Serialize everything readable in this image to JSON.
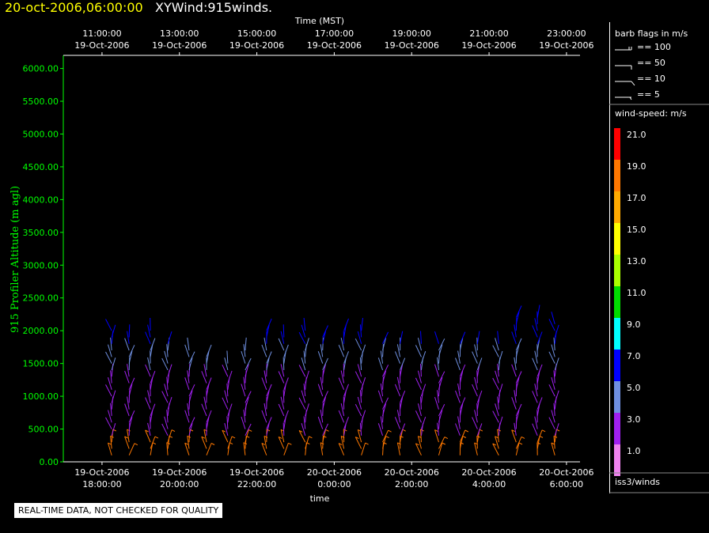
{
  "header": {
    "date": "20-oct-2006,06:00:00",
    "title": "XYWind:915winds."
  },
  "disclaimer": "REAL-TIME DATA, NOT CHECKED FOR QUALITY",
  "legend": {
    "barb_title": "barb flags in m/s",
    "barbs": [
      "== 100",
      "== 50",
      "== 10",
      "== 5"
    ],
    "speed_title": "wind-speed: m/s",
    "colors": [
      {
        "label": "21.0",
        "color": "#ff0000"
      },
      {
        "label": "19.0",
        "color": "#ff7800"
      },
      {
        "label": "17.0",
        "color": "#ffaa00"
      },
      {
        "label": "15.0",
        "color": "#ffff00"
      },
      {
        "label": "13.0",
        "color": "#aaff00"
      },
      {
        "label": "11.0",
        "color": "#00dd00"
      },
      {
        "label": "9.0",
        "color": "#00ffff"
      },
      {
        "label": "7.0",
        "color": "#0000ff"
      },
      {
        "label": "5.0",
        "color": "#6f8fe0"
      },
      {
        "label": "3.0",
        "color": "#a020f0"
      },
      {
        "label": "1.0",
        "color": "#ee82ee"
      }
    ],
    "source": "iss3/winds"
  },
  "chart_data": {
    "type": "scatter",
    "ylabel": "915 Profiler Altitude (m agl)",
    "xlabel": "time",
    "top_axis_title": "Time (MST)",
    "ylim": [
      0,
      6200
    ],
    "yticks": [
      "0.00",
      "500.00",
      "1000.00",
      "1500.00",
      "2000.00",
      "2500.00",
      "3000.00",
      "3500.00",
      "4000.00",
      "4500.00",
      "5000.00",
      "5500.00",
      "6000.00"
    ],
    "bottom_ticks": [
      {
        "date": "19-Oct-2006",
        "time": "18:00:00"
      },
      {
        "date": "19-Oct-2006",
        "time": "20:00:00"
      },
      {
        "date": "19-Oct-2006",
        "time": "22:00:00"
      },
      {
        "date": "20-Oct-2006",
        "time": "0:00:00"
      },
      {
        "date": "20-Oct-2006",
        "time": "2:00:00"
      },
      {
        "date": "20-Oct-2006",
        "time": "4:00:00"
      },
      {
        "date": "20-Oct-2006",
        "time": "6:00:00"
      }
    ],
    "top_ticks": [
      {
        "time": "11:00:00",
        "date": "19-Oct-2006"
      },
      {
        "time": "13:00:00",
        "date": "19-Oct-2006"
      },
      {
        "time": "15:00:00",
        "date": "19-Oct-2006"
      },
      {
        "time": "17:00:00",
        "date": "19-Oct-2006"
      },
      {
        "time": "19:00:00",
        "date": "19-Oct-2006"
      },
      {
        "time": "21:00:00",
        "date": "19-Oct-2006"
      },
      {
        "time": "23:00:00",
        "date": "19-Oct-2006"
      }
    ],
    "profile_times_hours": [
      0.25,
      0.7,
      1.25,
      1.7,
      2.25,
      2.7,
      3.25,
      3.7,
      4.25,
      4.7,
      5.25,
      5.7,
      6.25,
      6.7,
      7.25,
      7.7,
      8.25,
      8.7,
      9.25,
      9.7,
      10.25,
      10.7,
      11.25,
      11.7
    ],
    "top_heights_m": [
      2000,
      1950,
      2000,
      1850,
      1750,
      1600,
      1500,
      1700,
      2000,
      1950,
      2000,
      1950,
      2000,
      2050,
      1800,
      1850,
      1850,
      1800,
      1800,
      1800,
      1800,
      2250,
      2250,
      2100
    ],
    "wind_bands": [
      {
        "from_m": 0,
        "to_m": 400,
        "speed_ms": 19
      },
      {
        "from_m": 400,
        "to_m": 1350,
        "speed_ms": 3
      },
      {
        "from_m": 1350,
        "to_m": 1750,
        "speed_ms": 5
      },
      {
        "from_m": 1750,
        "to_m": 2300,
        "speed_ms": 7
      }
    ]
  }
}
